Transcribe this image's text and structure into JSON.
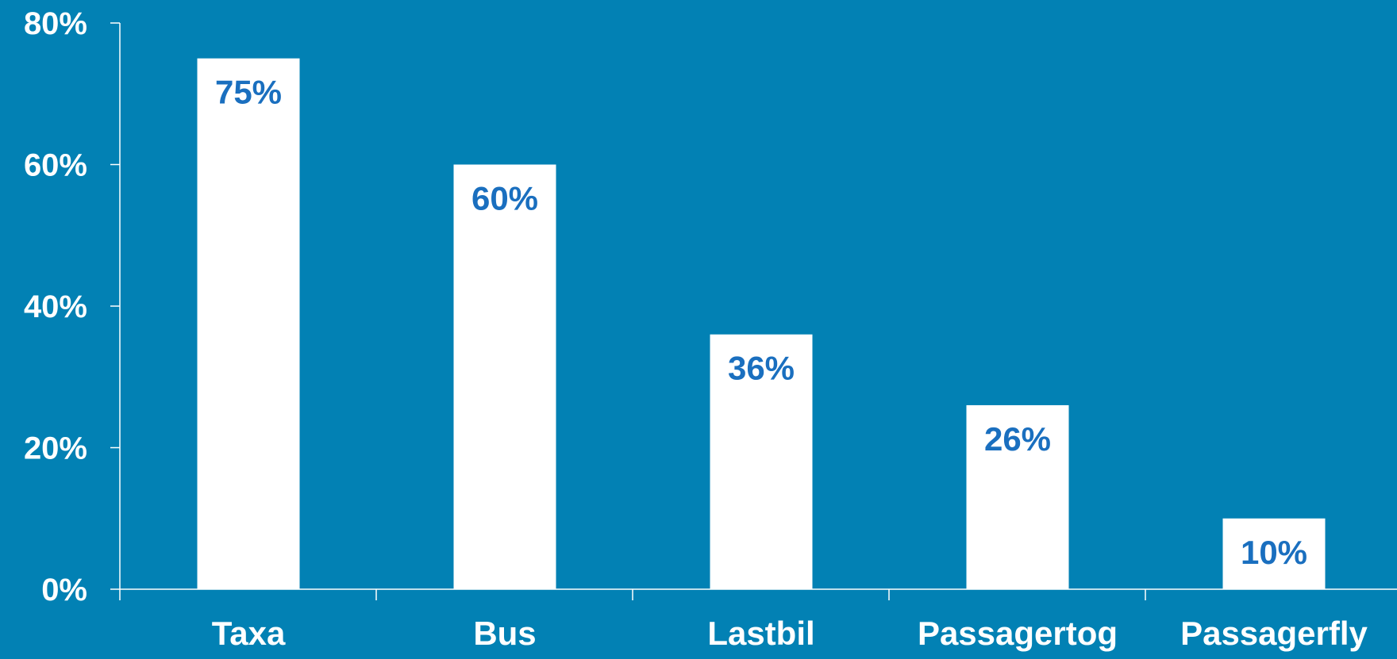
{
  "colors": {
    "background": "#0281b4",
    "bar": "#ffffff",
    "value_label": "#1a6fbf",
    "axis_text": "#ffffff",
    "axis_line": "#ffffff"
  },
  "chart_data": {
    "type": "bar",
    "categories": [
      "Taxa",
      "Bus",
      "Lastbil",
      "Passagertog",
      "Passagerfly"
    ],
    "values": [
      75,
      60,
      36,
      26,
      10
    ],
    "value_labels": [
      "75%",
      "60%",
      "36%",
      "26%",
      "10%"
    ],
    "title": "",
    "xlabel": "",
    "ylabel": "",
    "ylim": [
      0,
      80
    ],
    "y_ticks": [
      0,
      20,
      40,
      60,
      80
    ],
    "y_tick_labels": [
      "0%",
      "20%",
      "40%",
      "60%",
      "80%"
    ],
    "grid": false,
    "legend": "none"
  }
}
